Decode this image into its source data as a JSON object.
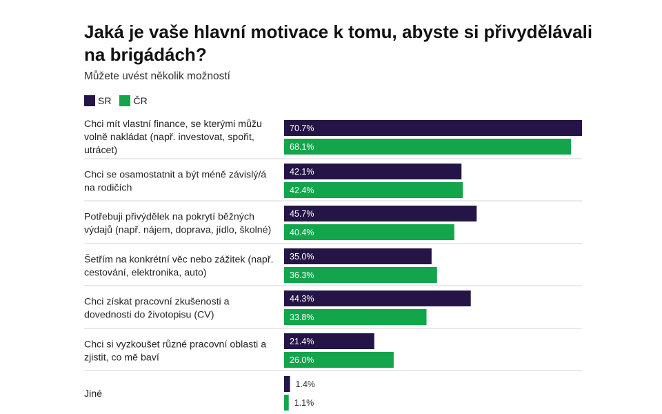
{
  "chart_data": {
    "type": "bar",
    "orientation": "horizontal",
    "title": "Jaká je vaše hlavní motivace k tomu, abyste si přivydělávali na brigádách?",
    "subtitle": "Můžete uvést několik možností",
    "categories": [
      [
        "Chci mít vlastní finance, se kterými můžu",
        "volně nakládat (např. investovat, spořit,",
        "utrácet)"
      ],
      [
        "Chci se osamostatnit a být méně závislý/á",
        "na rodičích"
      ],
      [
        "Potřebuji přivýdělek na pokrytí běžných",
        "výdajů (např. nájem, doprava, jídlo, školné)"
      ],
      [
        "Šetřím na konkrétní věc nebo zážitek (např.",
        "cestování, elektronika, auto)"
      ],
      [
        "Chci získat pracovní zkušenosti a",
        "dovednosti do životopisu (CV)"
      ],
      [
        "Chci si vyzkoušet různé pracovní oblasti a",
        "zjistit, co mě baví"
      ],
      [
        "Jiné"
      ]
    ],
    "series": [
      {
        "name": "SR",
        "color": "#241546",
        "values": [
          70.7,
          42.1,
          45.7,
          35.0,
          44.3,
          21.4,
          1.4
        ]
      },
      {
        "name": "ČR",
        "color": "#13a54b",
        "values": [
          68.1,
          42.4,
          40.4,
          36.3,
          33.8,
          26.0,
          1.1
        ]
      }
    ],
    "value_suffix": "%",
    "xlim": [
      0,
      70.7
    ],
    "legend_position": "top-left",
    "grid": false
  }
}
